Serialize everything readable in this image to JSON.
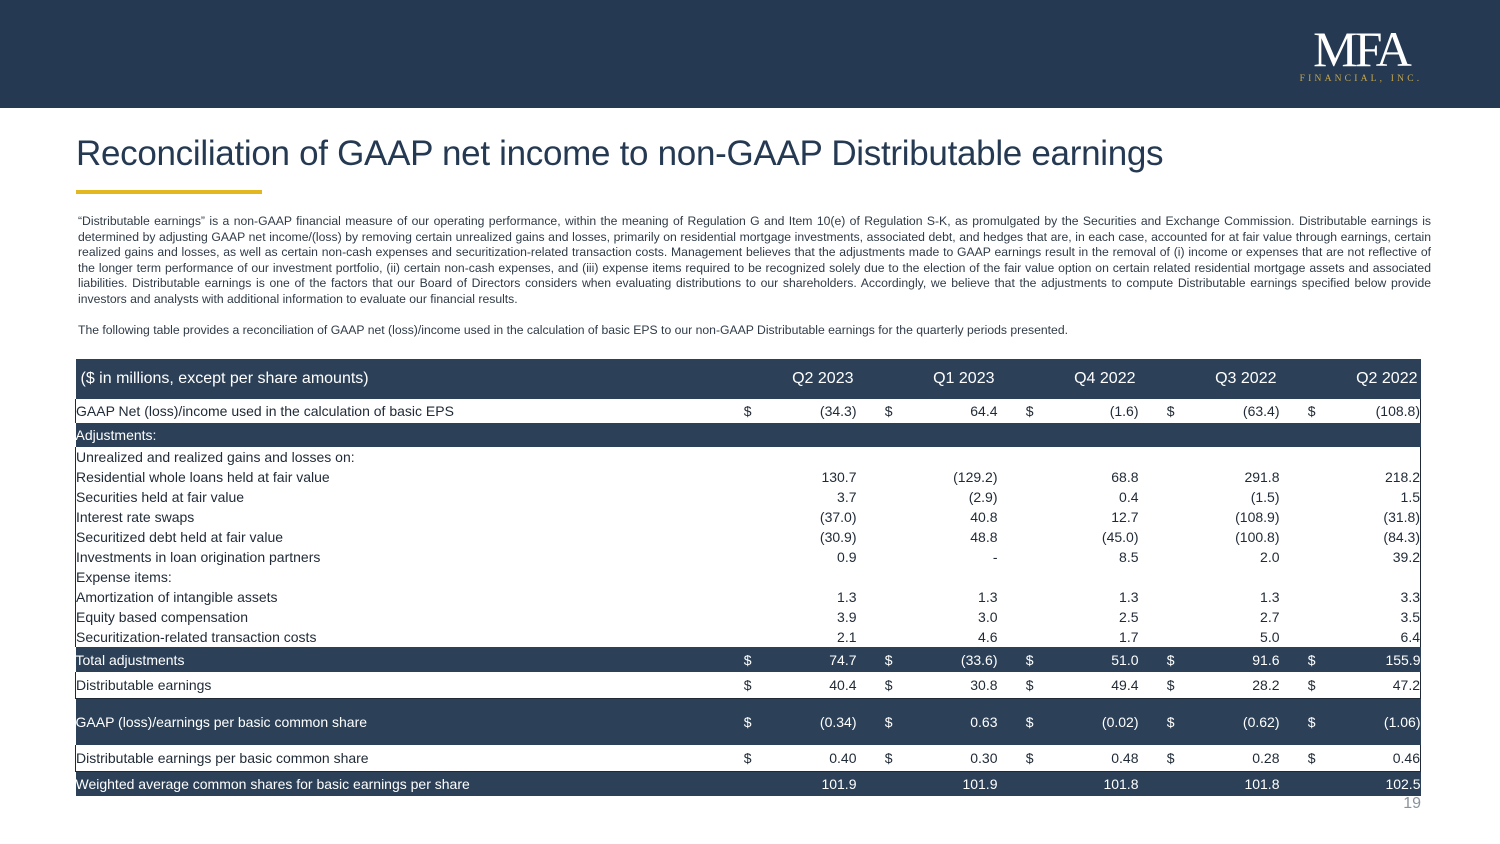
{
  "header": {
    "logo_mark": "MFA",
    "logo_sub": "FINANCIAL, INC."
  },
  "title": "Reconciliation of GAAP net income to non-GAAP Distributable earnings",
  "intro": {
    "paragraph1": "“Distributable earnings” is a non-GAAP financial measure of our operating performance, within the meaning of Regulation G and Item 10(e) of Regulation S-K, as promulgated by the Securities and Exchange Commission. Distributable earnings is determined by adjusting GAAP net income/(loss) by removing certain unrealized gains and losses, primarily on residential mortgage investments, associated debt, and hedges that are, in each case, accounted for at fair value through earnings, certain realized gains and losses, as well as certain non-cash expenses and securitization-related transaction costs.  Management believes that the adjustments made to GAAP earnings result in the removal of (i) income or expenses that are not reflective of the longer term performance of our investment portfolio, (ii) certain non-cash expenses, and (iii) expense items required to be recognized solely due to the election of the fair value option on certain related residential mortgage assets and associated liabilities.  Distributable earnings is one of the factors that our Board of Directors considers when evaluating distributions to our shareholders.  Accordingly, we believe that the adjustments to compute Distributable earnings specified below provide investors and analysts with additional information to evaluate our financial results.",
    "paragraph2": "The following table provides a reconciliation of GAAP net (loss)/income used in the calculation of basic EPS to our non-GAAP Distributable earnings for the quarterly periods presented."
  },
  "table": {
    "header_label": "($ in millions, except per share amounts)",
    "periods": [
      "Q2 2023",
      "Q1 2023",
      "Q4 2022",
      "Q3 2022",
      "Q2 2022"
    ],
    "gaap_net": {
      "label": "GAAP Net (loss)/income used in the calculation of basic EPS",
      "dollar": "$",
      "values": [
        "(34.3)",
        "64.4",
        "(1.6)",
        "(63.4)",
        "(108.8)"
      ]
    },
    "adjustments_label": "Adjustments:",
    "unrealized_label": "Unrealized and realized gains and losses on:",
    "unrealized_rows": [
      {
        "label": "Residential whole loans held at fair value",
        "values": [
          "130.7",
          "(129.2)",
          "68.8",
          "291.8",
          "218.2"
        ]
      },
      {
        "label": "Securities held at fair value",
        "values": [
          "3.7",
          "(2.9)",
          "0.4",
          "(1.5)",
          "1.5"
        ]
      },
      {
        "label": "Interest rate swaps",
        "values": [
          "(37.0)",
          "40.8",
          "12.7",
          "(108.9)",
          "(31.8)"
        ]
      },
      {
        "label": "Securitized debt held at fair value",
        "values": [
          "(30.9)",
          "48.8",
          "(45.0)",
          "(100.8)",
          "(84.3)"
        ]
      },
      {
        "label": "Investments in loan origination partners",
        "values": [
          "0.9",
          "-",
          "8.5",
          "2.0",
          "39.2"
        ]
      }
    ],
    "expense_label": "Expense items:",
    "expense_rows": [
      {
        "label": "Amortization of intangible assets",
        "values": [
          "1.3",
          "1.3",
          "1.3",
          "1.3",
          "3.3"
        ]
      },
      {
        "label": "Equity based compensation",
        "values": [
          "3.9",
          "3.0",
          "2.5",
          "2.7",
          "3.5"
        ]
      },
      {
        "label": "Securitization-related transaction costs",
        "values": [
          "2.1",
          "4.6",
          "1.7",
          "5.0",
          "6.4"
        ]
      }
    ],
    "total_adjustments": {
      "label": "Total adjustments",
      "dollar": "$",
      "values": [
        "74.7",
        "(33.6)",
        "51.0",
        "91.6",
        "155.9"
      ]
    },
    "distributable_earnings": {
      "label": "Distributable earnings",
      "dollar": "$",
      "values": [
        "40.4",
        "30.8",
        "49.4",
        "28.2",
        "47.2"
      ]
    },
    "gaap_eps": {
      "label": "GAAP (loss)/earnings per basic common share",
      "dollar": "$",
      "values": [
        "(0.34)",
        "0.63",
        "(0.02)",
        "(0.62)",
        "(1.06)"
      ]
    },
    "distributable_eps": {
      "label": "Distributable earnings per basic common share",
      "dollar": "$",
      "values": [
        "0.40",
        "0.30",
        "0.48",
        "0.28",
        "0.46"
      ]
    },
    "weighted_shares": {
      "label": "Weighted average common shares for basic earnings per share",
      "values": [
        "101.9",
        "101.9",
        "101.8",
        "101.8",
        "102.5"
      ]
    }
  },
  "page_number": "19"
}
